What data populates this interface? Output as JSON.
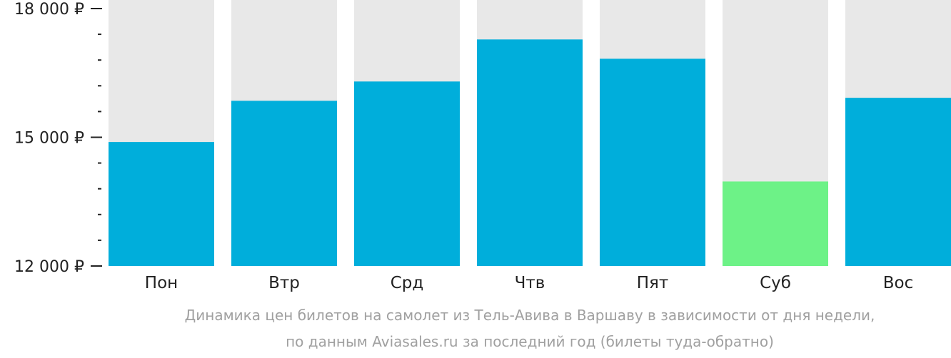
{
  "chart_data": {
    "type": "bar",
    "categories": [
      "Пон",
      "Втр",
      "Срд",
      "Чтв",
      "Пят",
      "Суб",
      "Вос"
    ],
    "values": [
      14890,
      15850,
      16300,
      17280,
      16830,
      13970,
      15920
    ],
    "highlight_index": 5,
    "ylim": [
      12000,
      18000
    ],
    "y_tick_labels": [
      "12 000 ₽",
      "15 000 ₽",
      "18 000 ₽"
    ],
    "y_tick_values": [
      12000,
      15000,
      18000
    ],
    "y_minor_step": 600,
    "caption_line1": "Динамика цен билетов на самолет из Тель-Авива в Варшаву в зависимости от дня недели,",
    "caption_line2": "по данным Aviasales.ru за последний год (билеты туда-обратно)",
    "colors": {
      "bar": "#00aedb",
      "highlight": "#6df287",
      "background_column": "#e8e8e8",
      "axis_text": "#222222",
      "caption_text": "#a0a0a0"
    }
  }
}
